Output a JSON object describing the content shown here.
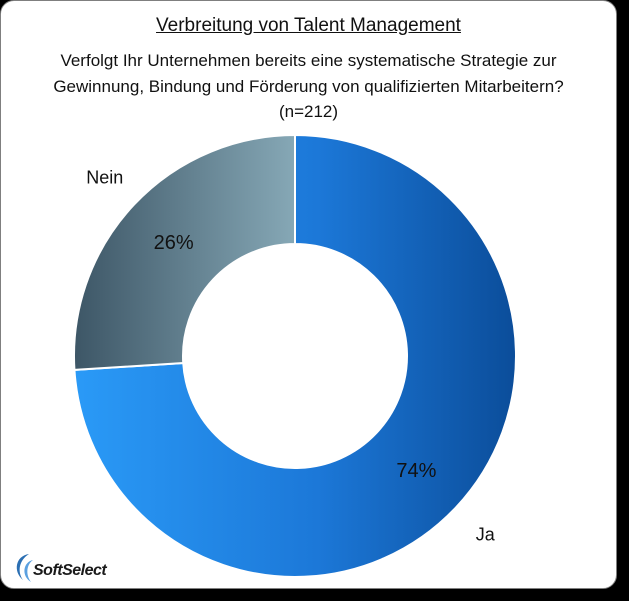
{
  "chart_data": {
    "type": "pie",
    "donut": true,
    "title": "Verbreitung von Talent Management",
    "subtitle": "Verfolgt Ihr Unternehmen bereits eine systematische Strategie zur Gewinnung, Bindung und Förderung von qualifizierten Mitarbeitern?",
    "note": "(n=212)",
    "categories": [
      "Ja",
      "Nein"
    ],
    "values": [
      74,
      26
    ],
    "value_labels": [
      "74%",
      "26%"
    ],
    "colors": [
      "#1f7fe0",
      "#6e8ea0"
    ]
  },
  "logo": {
    "text": "SoftSelect"
  }
}
